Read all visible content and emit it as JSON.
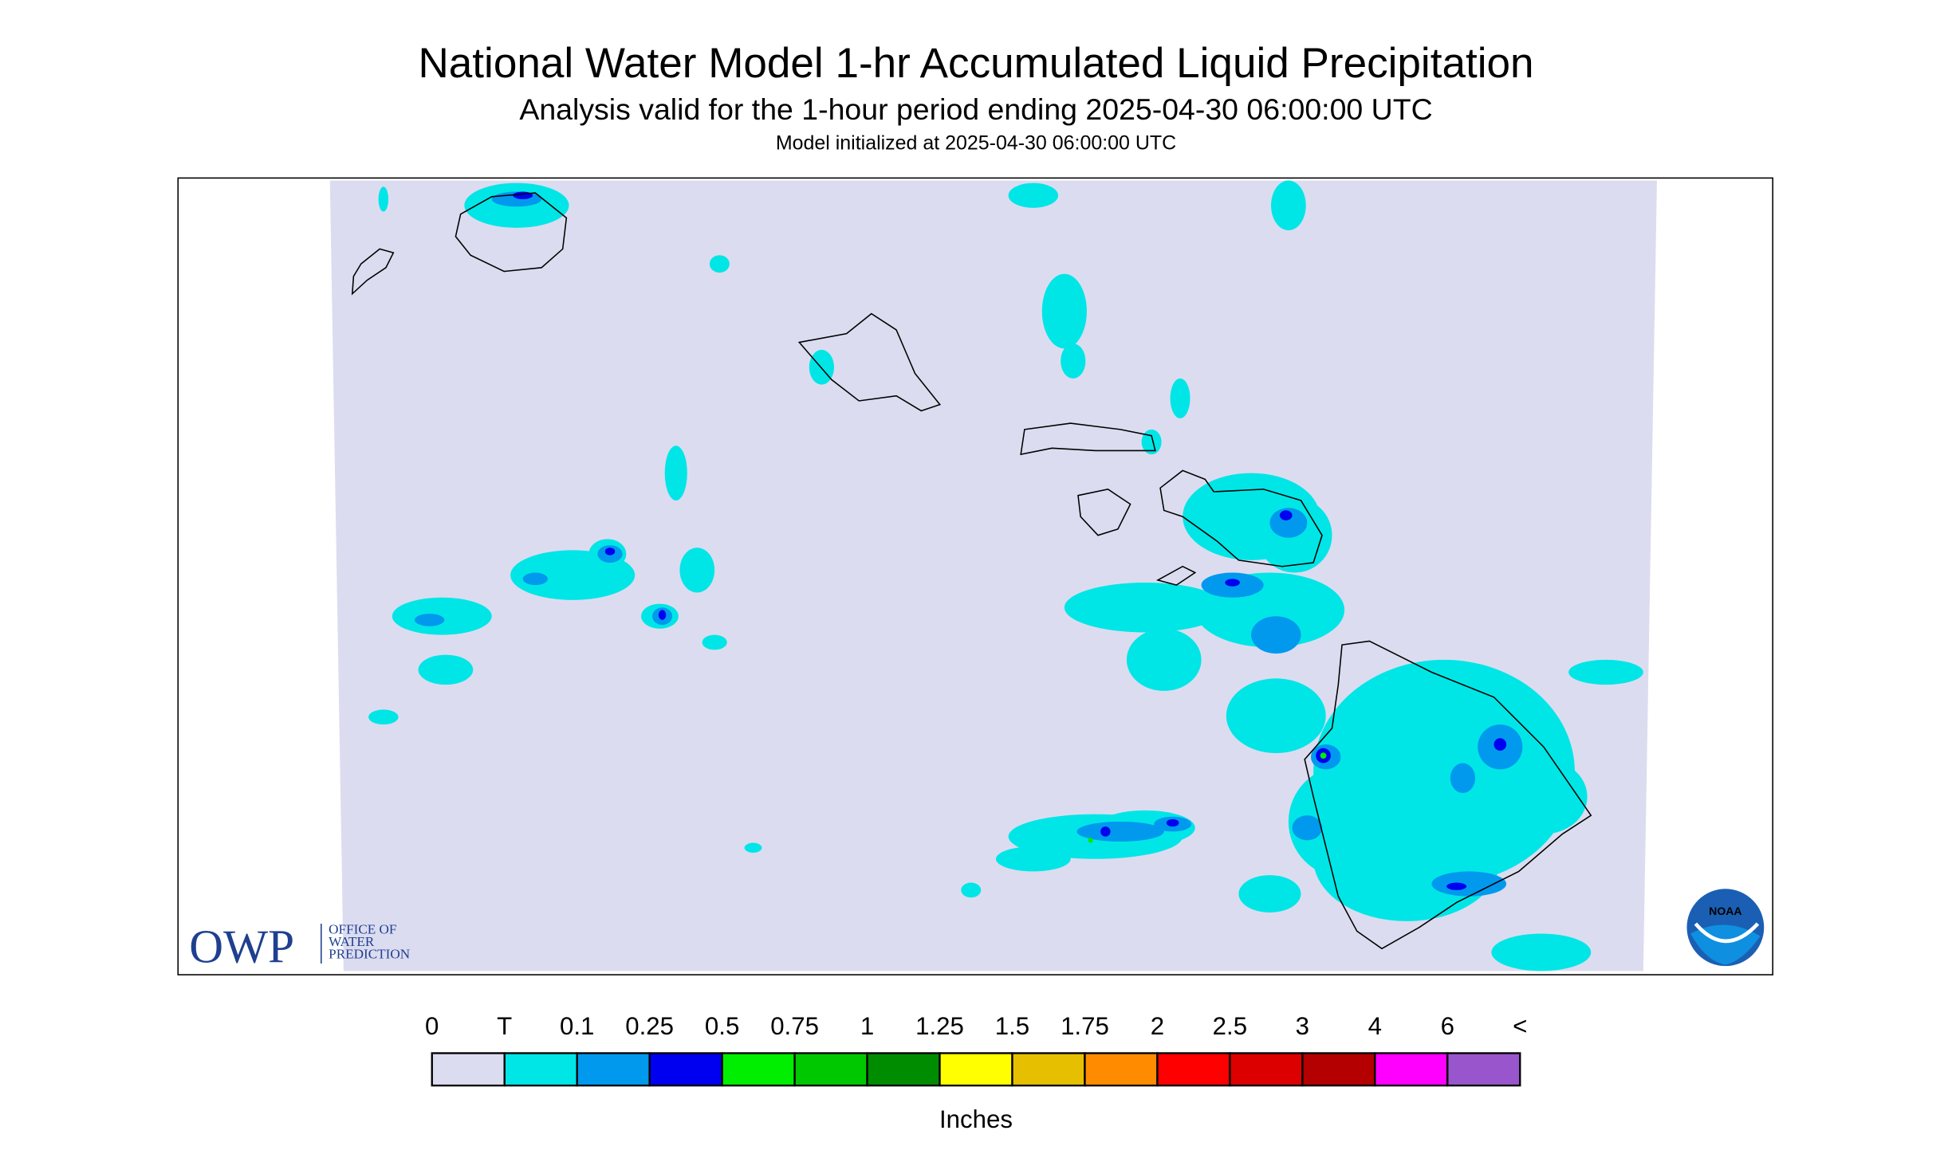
{
  "header": {
    "title": "National Water Model 1-hr Accumulated Liquid Precipitation",
    "subtitle": "Analysis valid for the 1-hour period ending 2025-04-30 06:00:00 UTC",
    "init": "Model initialized at 2025-04-30 06:00:00 UTC"
  },
  "legend": {
    "labels": [
      "0",
      "T",
      "0.1",
      "0.25",
      "0.5",
      "0.75",
      "1",
      "1.25",
      "1.5",
      "1.75",
      "2",
      "2.5",
      "3",
      "4",
      "6",
      "<"
    ],
    "colors": [
      "#dcdcf0",
      "#00e6e6",
      "#0099ee",
      "#0000f0",
      "#00ee00",
      "#00c800",
      "#008c00",
      "#ffff00",
      "#e6c000",
      "#ff8c00",
      "#ff0000",
      "#dc0000",
      "#b40000",
      "#ff00ff",
      "#9955cc"
    ],
    "units": "Inches"
  },
  "logos": {
    "owp": "OWP",
    "owp_lines": [
      "OFFICE OF",
      "WATER",
      "PREDICTION"
    ],
    "noaa": "NOAA"
  }
}
